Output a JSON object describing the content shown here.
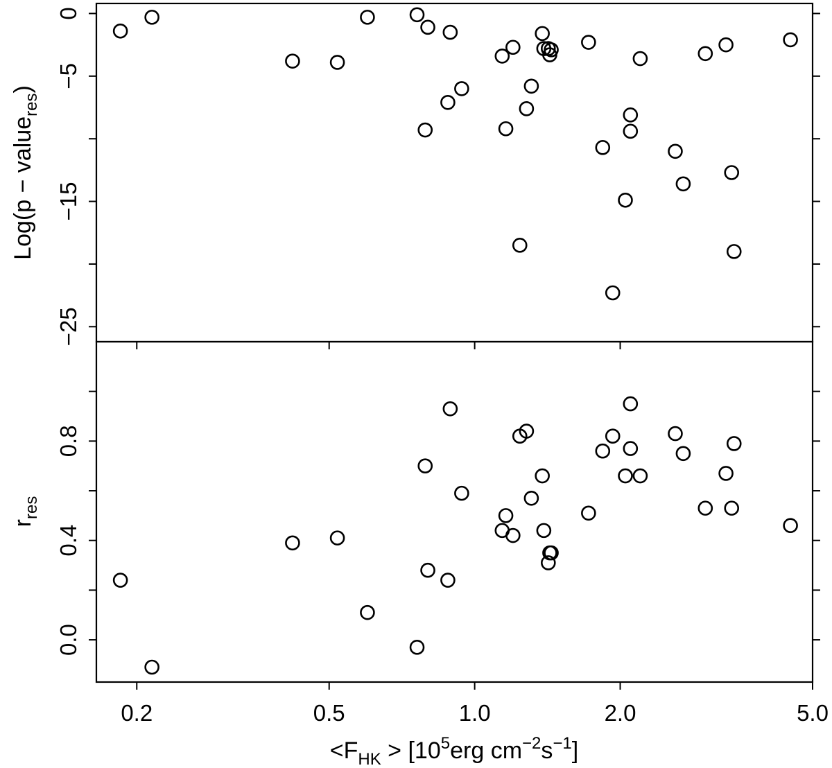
{
  "chart_data": {
    "type": "scatter",
    "x_scale": "log",
    "grid": false,
    "legend": "none",
    "xlim": [
      0.165,
      5.0
    ],
    "x_ticks": [
      0.2,
      0.5,
      1.0,
      2.0,
      5.0
    ],
    "x_tick_labels": [
      "0.2",
      "0.5",
      "1.0",
      "2.0",
      "5.0"
    ],
    "xlabel": {
      "pre": "<F",
      "sub": "HK",
      "mid": " > [10",
      "sup1": "5",
      "mid2": "erg cm",
      "sup2": "−2",
      "mid3": "s",
      "sup3": "−1",
      "post": "]"
    },
    "x": [
      0.185,
      0.215,
      0.42,
      0.52,
      0.6,
      0.76,
      0.79,
      0.8,
      0.88,
      0.89,
      0.94,
      1.14,
      1.16,
      1.2,
      1.24,
      1.28,
      1.31,
      1.38,
      1.39,
      1.42,
      1.43,
      1.44,
      1.72,
      1.84,
      1.93,
      2.05,
      2.1,
      2.1,
      2.2,
      2.6,
      2.7,
      3.0,
      3.31,
      3.4,
      3.44,
      4.5
    ],
    "panels": [
      {
        "id": "top",
        "ylabel": {
          "pre": "Log(p − value",
          "sub": "res",
          "post": ")"
        },
        "ylim": [
          -26.2,
          0.8
        ],
        "y_ticks": [
          0,
          -5,
          -10,
          -15,
          -20,
          -25
        ],
        "y_tick_labels": [
          "0",
          "−5",
          "",
          "−15",
          "",
          "−25"
        ],
        "y": [
          -1.4,
          -0.3,
          -3.8,
          -3.9,
          -0.3,
          -0.1,
          -9.3,
          -1.1,
          -7.1,
          -1.5,
          -6.0,
          -3.4,
          -9.2,
          -2.7,
          -18.5,
          -7.6,
          -5.8,
          -1.6,
          -2.8,
          -2.8,
          -3.3,
          -2.9,
          -2.3,
          -10.7,
          -22.3,
          -14.9,
          -8.1,
          -9.4,
          -3.6,
          -11.0,
          -13.6,
          -3.2,
          -2.5,
          -12.7,
          -19.0,
          -2.1
        ]
      },
      {
        "id": "bottom",
        "ylabel": {
          "pre": "r",
          "sub": "res",
          "post": ""
        },
        "ylim": [
          -0.17,
          1.2
        ],
        "y_ticks": [
          0.0,
          0.2,
          0.4,
          0.6,
          0.8,
          1.0
        ],
        "y_tick_labels": [
          "0.0",
          "",
          "0.4",
          "",
          "0.8",
          ""
        ],
        "y": [
          0.24,
          -0.11,
          0.39,
          0.41,
          0.11,
          -0.03,
          0.7,
          0.28,
          0.24,
          0.93,
          0.59,
          0.44,
          0.5,
          0.42,
          0.82,
          0.84,
          0.57,
          0.66,
          0.44,
          0.31,
          0.35,
          0.35,
          0.51,
          0.76,
          0.82,
          0.66,
          0.95,
          0.77,
          0.66,
          0.83,
          0.75,
          0.53,
          0.67,
          0.53,
          0.79,
          0.46
        ]
      }
    ]
  }
}
